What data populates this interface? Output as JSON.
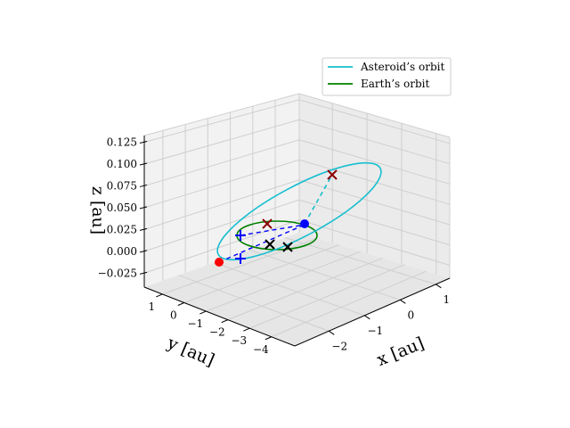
{
  "chart_data": {
    "type": "3d-line",
    "xlabel": "x [au]",
    "ylabel": "y [au]",
    "zlabel": "z [au]",
    "x_ticks": [
      "−2",
      "−1",
      "0",
      "1"
    ],
    "y_ticks": [
      "1",
      "0",
      "−1",
      "−2",
      "−3",
      "−4"
    ],
    "z_ticks": [
      "−0.025",
      "0.000",
      "0.025",
      "0.050",
      "0.075",
      "0.100",
      "0.125"
    ],
    "xlim": [
      -2.6,
      1.6
    ],
    "ylim": [
      -4.6,
      1.4
    ],
    "zlim": [
      -0.03,
      0.14
    ],
    "grid": true,
    "legend_position": "top-right",
    "series": [
      {
        "name": "Asteroid’s orbit",
        "color": "#17becf",
        "style": "solid"
      },
      {
        "name": "Earth’s orbit",
        "color": "#008000",
        "style": "solid"
      }
    ],
    "markers": [
      {
        "kind": "dot",
        "color": "#ff0000"
      },
      {
        "kind": "dot",
        "color": "#0000ff"
      },
      {
        "kind": "plus",
        "color": "#0000ff"
      },
      {
        "kind": "plus",
        "color": "#0000ff"
      },
      {
        "kind": "cross",
        "color": "#000000"
      },
      {
        "kind": "cross",
        "color": "#000000"
      },
      {
        "kind": "cross",
        "color": "#8b0000"
      },
      {
        "kind": "cross",
        "color": "#8b0000"
      }
    ]
  }
}
